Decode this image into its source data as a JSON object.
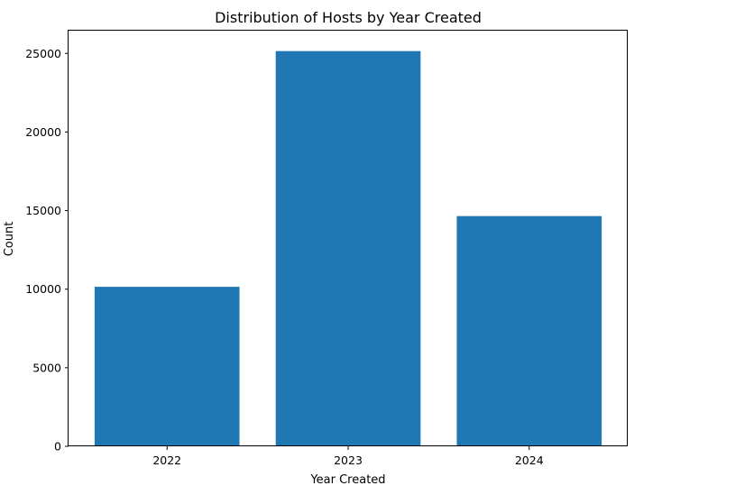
{
  "chart_data": {
    "type": "bar",
    "title": "Distribution of Hosts by Year Created",
    "xlabel": "Year Created",
    "ylabel": "Count",
    "categories": [
      "2022",
      "2023",
      "2024"
    ],
    "values": [
      10150,
      25150,
      14650
    ],
    "ylim": [
      0,
      26450
    ],
    "yticks": [
      0,
      5000,
      10000,
      15000,
      20000,
      25000
    ],
    "bar_color": "#1f77b4",
    "grid": false
  }
}
